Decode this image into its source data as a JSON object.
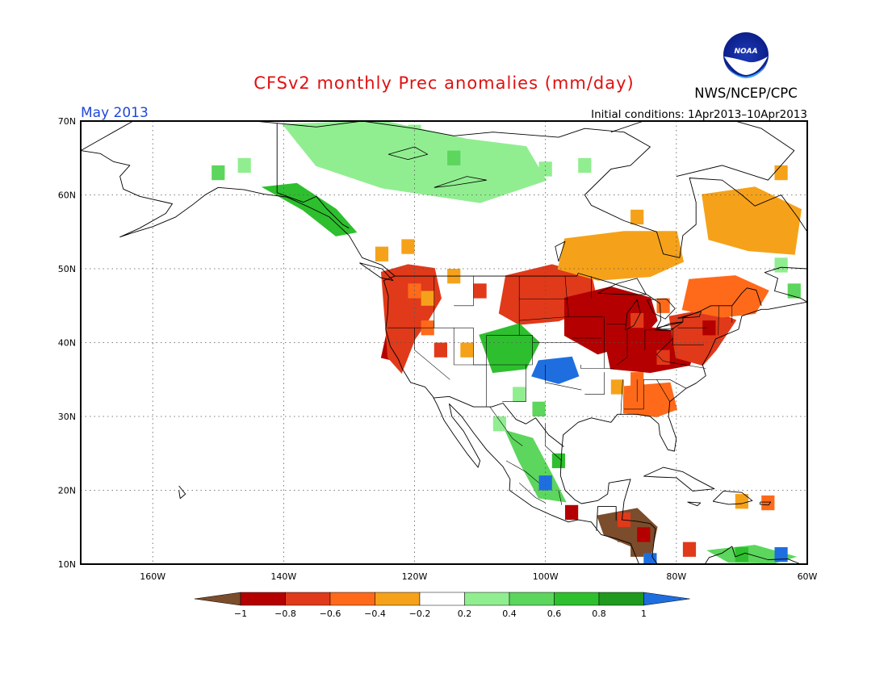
{
  "header": {
    "title": "CFSv2 monthly Prec anomalies (mm/day)",
    "agency": "NWS/NCEP/CPC",
    "logo_text": "NOAA",
    "month": "May 2013",
    "initial_conditions": "Initial conditions: 1Apr2013–10Apr2013"
  },
  "axes": {
    "lat_labels": [
      "70N",
      "60N",
      "50N",
      "40N",
      "30N",
      "20N",
      "10N"
    ],
    "lon_labels": [
      "160W",
      "140W",
      "120W",
      "100W",
      "80W",
      "60W"
    ]
  },
  "colorbar": {
    "tick_labels": [
      "−1",
      "−0.8",
      "−0.6",
      "−0.4",
      "−0.2",
      "0.2",
      "0.4",
      "0.6",
      "0.8",
      "1"
    ],
    "colors": [
      "#7b4d2c",
      "#b40000",
      "#e03a1a",
      "#ff6a1a",
      "#f5a21a",
      "#ffffff",
      "#90ee90",
      "#5cd65c",
      "#2ebf2e",
      "#1f9a1f",
      "#1e6ee0"
    ],
    "bin_labels": [
      "< -1",
      "-1 to -0.8",
      "-0.8 to -0.6",
      "-0.6 to -0.4",
      "-0.4 to -0.2",
      "-0.2 to 0.2",
      "0.2 to 0.4",
      "0.4 to 0.6",
      "0.6 to 0.8",
      "0.8 to 1",
      "> 1"
    ]
  },
  "map_data": {
    "projection": "cylindrical equidistant",
    "lon_range": [
      -171,
      -60
    ],
    "lat_range": [
      10,
      70
    ],
    "grid": true,
    "anomaly_regions": [
      {
        "name": "pacific-northwest",
        "bin": 1
      },
      {
        "name": "northern-california",
        "bin": 2
      },
      {
        "name": "northern-plains",
        "bin": 2
      },
      {
        "name": "upper-midwest",
        "bin": 1
      },
      {
        "name": "ohio-valley",
        "bin": 1
      },
      {
        "name": "mid-atlantic",
        "bin": 2
      },
      {
        "name": "new-england",
        "bin": 3
      },
      {
        "name": "southeast",
        "bin": 3
      },
      {
        "name": "central-canada",
        "bin": 4
      },
      {
        "name": "quebec-labrador",
        "bin": 4
      },
      {
        "name": "central-rockies",
        "bin": 8
      },
      {
        "name": "southern-plains",
        "bin": 10
      },
      {
        "name": "northwest-territories",
        "bin": 6
      },
      {
        "name": "alaska-panhandle",
        "bin": 8
      },
      {
        "name": "mexico-sierra-madre",
        "bin": 7
      },
      {
        "name": "central-america",
        "bin": 0
      },
      {
        "name": "caribbean-south",
        "bin": 7
      }
    ]
  }
}
